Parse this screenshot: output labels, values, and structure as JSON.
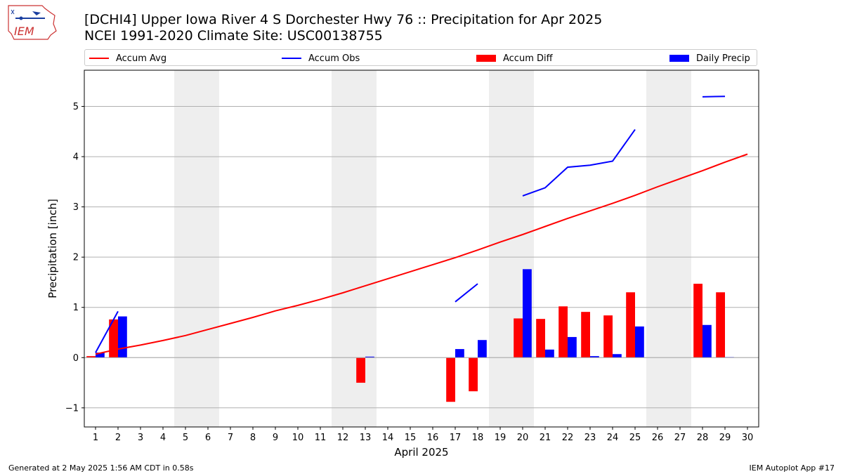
{
  "header": {
    "title": "[DCHI4] Upper Iowa River 4 S Dorchester Hwy 76 :: Precipitation for Apr 2025",
    "subtitle": "NCEI 1991-2020 Climate Site: USC00138755",
    "logo_text": "IEM"
  },
  "footer": {
    "generated": "Generated at 2 May 2025 1:56 AM CDT in 0.58s",
    "app": "IEM Autoplot App #17"
  },
  "colors": {
    "accum_avg": "#ff0000",
    "accum_obs": "#0000ff",
    "accum_diff": "#ff0000",
    "daily_precip": "#0000ff",
    "weekend_shade": "#eeeeee",
    "grid": "#b0b0b0"
  },
  "chart_data": {
    "type": "bar",
    "title": "[DCHI4] Upper Iowa River 4 S Dorchester Hwy 76 :: Precipitation for Apr 2025",
    "xlabel": "April 2025",
    "ylabel": "Precipitation [inch]",
    "xlim": [
      0.5,
      30.5
    ],
    "ylim": [
      -1.38,
      5.72
    ],
    "yticks": [
      -1,
      0,
      1,
      2,
      3,
      4,
      5
    ],
    "ytick_labels": [
      "−1",
      "0",
      "1",
      "2",
      "3",
      "4",
      "5"
    ],
    "grid": "y",
    "legend_placement": "top",
    "days": [
      1,
      2,
      3,
      4,
      5,
      6,
      7,
      8,
      9,
      10,
      11,
      12,
      13,
      14,
      15,
      16,
      17,
      18,
      19,
      20,
      21,
      22,
      23,
      24,
      25,
      26,
      27,
      28,
      29,
      30
    ],
    "shaded_day_ranges": [
      [
        5,
        6
      ],
      [
        12,
        13
      ],
      [
        19,
        20
      ],
      [
        26,
        27
      ]
    ],
    "series": [
      {
        "name": "Accum Avg",
        "kind": "line",
        "values": [
          0.07,
          0.17,
          0.25,
          0.34,
          0.44,
          0.56,
          0.68,
          0.8,
          0.93,
          1.04,
          1.16,
          1.29,
          1.43,
          1.57,
          1.71,
          1.85,
          1.99,
          2.14,
          2.3,
          2.45,
          2.61,
          2.77,
          2.92,
          3.07,
          3.23,
          3.4,
          3.56,
          3.72,
          3.89,
          4.05
        ]
      },
      {
        "name": "Accum Obs",
        "kind": "line",
        "values": [
          0.1,
          0.92,
          null,
          null,
          null,
          null,
          null,
          null,
          null,
          null,
          null,
          null,
          null,
          null,
          null,
          null,
          1.11,
          1.47,
          null,
          3.22,
          3.38,
          3.79,
          3.83,
          3.91,
          4.54,
          null,
          null,
          5.19,
          5.2,
          null
        ]
      },
      {
        "name": "Accum Diff",
        "kind": "bar",
        "values": [
          0.03,
          0.76,
          null,
          null,
          null,
          null,
          null,
          null,
          null,
          null,
          null,
          null,
          -0.5,
          null,
          null,
          null,
          -0.88,
          -0.67,
          null,
          0.78,
          0.77,
          1.02,
          0.91,
          0.84,
          1.3,
          null,
          null,
          1.47,
          1.3,
          null
        ]
      },
      {
        "name": "Daily Precip",
        "kind": "bar",
        "values": [
          0.1,
          0.82,
          null,
          null,
          null,
          null,
          null,
          null,
          null,
          null,
          null,
          null,
          0.02,
          null,
          null,
          null,
          0.17,
          0.35,
          null,
          1.76,
          0.16,
          0.41,
          0.03,
          0.07,
          0.62,
          null,
          null,
          0.65,
          0.01,
          null
        ]
      }
    ]
  }
}
